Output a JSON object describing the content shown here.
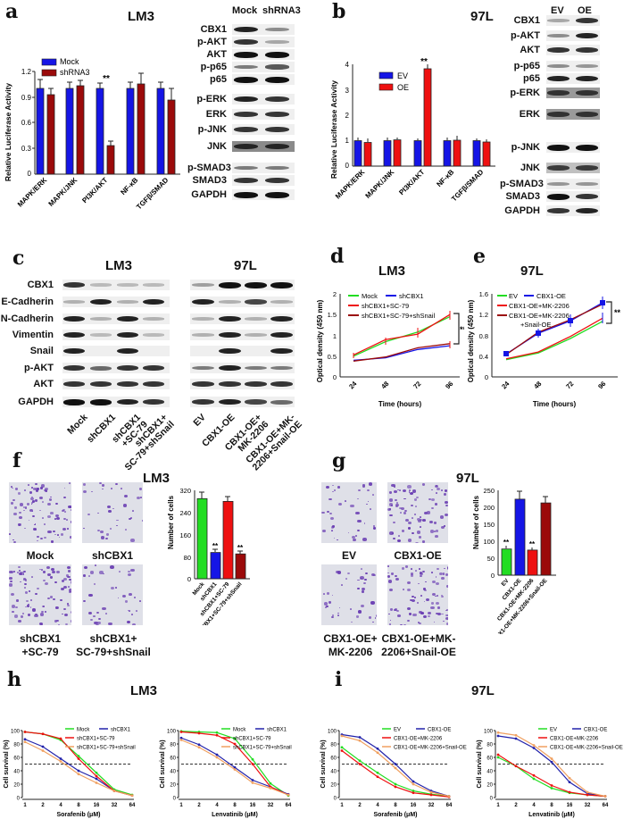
{
  "panels": {
    "a": {
      "label": "a",
      "title": "LM3"
    },
    "b": {
      "label": "b",
      "title": "97L"
    },
    "c": {
      "label": "c",
      "title_left": "LM3",
      "title_right": "97L"
    },
    "d": {
      "label": "d",
      "title": "LM3"
    },
    "e": {
      "label": "e",
      "title": "97L"
    },
    "f": {
      "label": "f",
      "title": "LM3"
    },
    "g": {
      "label": "g",
      "title": "97L"
    },
    "h": {
      "label": "h",
      "title": "LM3"
    },
    "i": {
      "label": "i",
      "title": "97L"
    }
  },
  "western_a": {
    "columns": [
      "Mock",
      "shRNA3"
    ],
    "rows": [
      "CBX1",
      "p-AKT",
      "AKT",
      "p-p65",
      "p65",
      "p-ERK",
      "ERK",
      "p-JNK",
      "JNK",
      "p-SMAD3",
      "SMAD3",
      "GAPDH"
    ]
  },
  "western_b": {
    "columns": [
      "EV",
      "OE"
    ],
    "rows": [
      "CBX1",
      "p-AKT",
      "AKT",
      "p-p65",
      "p65",
      "p-ERK",
      "ERK",
      "p-JNK",
      "JNK",
      "p-SMAD3",
      "SMAD3",
      "GAPDH"
    ]
  },
  "western_c": {
    "rows": [
      "CBX1",
      "E-Cadherin",
      "N-Cadherin",
      "Vimentin",
      "Snail",
      "p-AKT",
      "AKT",
      "GAPDH"
    ],
    "lanes_left": [
      "Mock",
      "shCBX1",
      "shCBX1\n+SC-79",
      "shCBX1+\nSC-79+shSnail"
    ],
    "lanes_right": [
      "EV",
      "CBX1-OE",
      "CBX1-OE+\nMK-2206",
      "CBX1-OE+MK-\n2206+Snail-OE"
    ]
  },
  "micrographs_f": {
    "captions": [
      "Mock",
      "shCBX1",
      "shCBX1\n+SC-79",
      "shCBX1+\nSC-79+shSnail"
    ]
  },
  "micrographs_g": {
    "captions": [
      "EV",
      "CBX1-OE",
      "CBX1-OE+\nMK-2206",
      "CBX1-OE+MK-\n2206+Snail-OE"
    ]
  },
  "colors": {
    "blue": "#1515e6",
    "darkred": "#9b0a0a",
    "red": "#ee1010",
    "green": "#22dd22",
    "orange": "#f0a060",
    "navy": "#2222aa"
  },
  "chart_data": [
    {
      "id": "a",
      "type": "bar",
      "title": "LM3",
      "ylabel": "Relative Luciferase Activity",
      "ylim": [
        0,
        1.2
      ],
      "yticks": [
        0.0,
        0.3,
        0.6,
        0.9,
        1.2
      ],
      "categories": [
        "MAPK/ERK",
        "MAPK/JNK",
        "PI3K/AKT",
        "NF-κB",
        "TGFβ/SMAD"
      ],
      "series": [
        {
          "name": "Mock",
          "color": "#1515e6",
          "values": [
            1.0,
            1.0,
            1.0,
            1.0,
            1.0
          ],
          "errors": [
            0.1,
            0.08,
            0.06,
            0.07,
            0.07
          ]
        },
        {
          "name": "shRNA3",
          "color": "#9b0a0a",
          "values": [
            0.93,
            1.03,
            0.33,
            1.05,
            0.87
          ],
          "errors": [
            0.07,
            0.06,
            0.05,
            0.13,
            0.14
          ]
        }
      ],
      "annotations": [
        {
          "category": "PI3K/AKT",
          "text": "**"
        }
      ]
    },
    {
      "id": "b",
      "type": "bar",
      "title": "97L",
      "ylabel": "Relative Luciferase Activity",
      "ylim": [
        0,
        4
      ],
      "yticks": [
        0,
        1,
        2,
        3,
        4
      ],
      "categories": [
        "MAPK/ERK",
        "MAPK/JNK",
        "PI3K/AKT",
        "NF-κB",
        "TGFβ/SMAD"
      ],
      "series": [
        {
          "name": "EV",
          "color": "#1515e6",
          "values": [
            1.0,
            1.0,
            1.0,
            1.0,
            1.0
          ],
          "errors": [
            0.12,
            0.1,
            0.08,
            0.12,
            0.09
          ]
        },
        {
          "name": "OE",
          "color": "#ee1010",
          "values": [
            0.93,
            1.03,
            3.82,
            1.02,
            0.95
          ],
          "errors": [
            0.14,
            0.08,
            0.15,
            0.15,
            0.08
          ]
        }
      ],
      "annotations": [
        {
          "category": "PI3K/AKT",
          "text": "**"
        }
      ]
    },
    {
      "id": "d",
      "type": "line",
      "title": "LM3",
      "xlabel": "Time (hours)",
      "ylabel": "Optical density (450 nm)",
      "x": [
        24,
        48,
        72,
        96
      ],
      "ylim": [
        0,
        2.0
      ],
      "yticks": [
        0.0,
        0.5,
        1.0,
        1.5,
        2.0
      ],
      "series": [
        {
          "name": "Mock",
          "color": "#22dd22",
          "values": [
            0.5,
            0.85,
            1.08,
            1.45
          ]
        },
        {
          "name": "shCBX1",
          "color": "#1515e6",
          "values": [
            0.4,
            0.46,
            0.66,
            0.75
          ]
        },
        {
          "name": "shCBX1+SC-79",
          "color": "#ee1010",
          "values": [
            0.53,
            0.9,
            1.03,
            1.5
          ]
        },
        {
          "name": "shCBX1+SC-79+shSnail",
          "color": "#9b0a0a",
          "values": [
            0.38,
            0.48,
            0.7,
            0.8
          ]
        }
      ],
      "annotations": [
        {
          "text": "**",
          "position": "right bracket at 96h"
        }
      ]
    },
    {
      "id": "e",
      "type": "line",
      "title": "97L",
      "xlabel": "Time (hours)",
      "ylabel": "Optical density (450 nm)",
      "x": [
        24,
        48,
        72,
        96
      ],
      "ylim": [
        0,
        1.6
      ],
      "yticks": [
        0.0,
        0.4,
        0.8,
        1.2,
        1.6
      ],
      "series": [
        {
          "name": "EV",
          "color": "#22dd22",
          "values": [
            0.33,
            0.46,
            0.74,
            1.07
          ]
        },
        {
          "name": "CBX1-OE",
          "color": "#1515e6",
          "values": [
            0.44,
            0.84,
            1.08,
            1.43
          ]
        },
        {
          "name": "CBX1-OE+MK-2206",
          "color": "#ee1010",
          "values": [
            0.35,
            0.48,
            0.78,
            1.13
          ]
        },
        {
          "name": "CBX1-OE+MK-2206 +Snail-OE",
          "color": "#9b0a0a",
          "values": [
            0.43,
            0.86,
            1.1,
            1.4
          ]
        }
      ],
      "annotations": [
        {
          "text": "**",
          "position": "right bracket at 96h"
        }
      ]
    },
    {
      "id": "f",
      "type": "bar",
      "title": "LM3",
      "ylabel": "Number of cells",
      "ylim": [
        0,
        320
      ],
      "yticks": [
        0,
        80,
        160,
        240,
        320
      ],
      "categories": [
        "Mock",
        "shCBX1",
        "shCBX1+SC-79",
        "shCBX1+SC-79+shSnail"
      ],
      "values": [
        290,
        95,
        280,
        90
      ],
      "errors": [
        25,
        10,
        18,
        10
      ],
      "colors": [
        "#22dd22",
        "#1515e6",
        "#ee1010",
        "#9b0a0a"
      ],
      "annotations": [
        {
          "category": "shCBX1",
          "text": "**"
        },
        {
          "category": "shCBX1+SC-79+shSnail",
          "text": "**"
        }
      ]
    },
    {
      "id": "g",
      "type": "bar",
      "title": "97L",
      "ylabel": "Number of cells",
      "ylim": [
        0,
        250
      ],
      "yticks": [
        0,
        50,
        100,
        150,
        200,
        250
      ],
      "categories": [
        "EV",
        "CBX1-OE",
        "CBX1-OE+MK-2206",
        "CBX1-OE+MK-2206+Snail-OE"
      ],
      "values": [
        77,
        224,
        74,
        213
      ],
      "errors": [
        8,
        22,
        7,
        18
      ],
      "colors": [
        "#22dd22",
        "#1515e6",
        "#ee1010",
        "#9b0a0a"
      ],
      "annotations": [
        {
          "category": "EV",
          "text": "**"
        },
        {
          "category": "CBX1-OE+MK-2206",
          "text": "**"
        }
      ]
    },
    {
      "id": "h1",
      "type": "line",
      "title": "LM3",
      "xlabel": "Sorafenib (μM)",
      "ylabel": "Cell survival (%)",
      "x": [
        1,
        2,
        4,
        8,
        16,
        32,
        64
      ],
      "xscale": "log2",
      "ylim": [
        0,
        100
      ],
      "yticks": [
        0,
        20,
        40,
        60,
        80,
        100
      ],
      "reference_line": 50,
      "series": [
        {
          "name": "Mock",
          "color": "#22dd22",
          "values": [
            98,
            95,
            86,
            62,
            37,
            12,
            4
          ]
        },
        {
          "name": "shCBX1",
          "color": "#2222aa",
          "values": [
            87,
            76,
            58,
            40,
            28,
            10,
            3
          ]
        },
        {
          "name": "shCBX1+SC-79",
          "color": "#ee1010",
          "values": [
            98,
            95,
            88,
            58,
            32,
            10,
            3
          ]
        },
        {
          "name": "shCBX1+SC-79+shSnail",
          "color": "#f0a060",
          "values": [
            83,
            70,
            54,
            35,
            22,
            10,
            3
          ]
        }
      ]
    },
    {
      "id": "h2",
      "type": "line",
      "title": "LM3",
      "xlabel": "Lenvatinib (μM)",
      "ylabel": "Cell survival (%)",
      "x": [
        1,
        2,
        4,
        8,
        16,
        32,
        64
      ],
      "xscale": "log2",
      "ylim": [
        0,
        100
      ],
      "yticks": [
        0,
        20,
        40,
        60,
        80,
        100
      ],
      "reference_line": 50,
      "series": [
        {
          "name": "Mock",
          "color": "#22dd22",
          "values": [
            99,
            98,
            97,
            88,
            57,
            21,
            3
          ]
        },
        {
          "name": "shCBX1",
          "color": "#2222aa",
          "values": [
            89,
            79,
            64,
            45,
            26,
            16,
            5
          ]
        },
        {
          "name": "shCBX1+SC-79",
          "color": "#ee1010",
          "values": [
            98,
            96,
            93,
            80,
            50,
            16,
            4
          ]
        },
        {
          "name": "shCBX1+SC-79+shSnail",
          "color": "#f0a060",
          "values": [
            86,
            75,
            60,
            42,
            22,
            14,
            4
          ]
        }
      ]
    },
    {
      "id": "i1",
      "type": "line",
      "title": "97L",
      "xlabel": "Sorafenib (μM)",
      "ylabel": "Cell survival (%)",
      "x": [
        1,
        2,
        4,
        8,
        16,
        32,
        64
      ],
      "xscale": "log2",
      "ylim": [
        0,
        100
      ],
      "yticks": [
        0,
        20,
        40,
        60,
        80,
        100
      ],
      "reference_line": 50,
      "series": [
        {
          "name": "EV",
          "color": "#22dd22",
          "values": [
            75,
            55,
            37,
            20,
            10,
            5,
            2
          ]
        },
        {
          "name": "CBX1-OE",
          "color": "#2222aa",
          "values": [
            94,
            90,
            73,
            50,
            24,
            10,
            2
          ]
        },
        {
          "name": "CBX1-OE+MK-2206",
          "color": "#ee1010",
          "values": [
            70,
            50,
            31,
            16,
            7,
            4,
            1
          ]
        },
        {
          "name": "CBX1-OE+MK-2206+Snail-OE",
          "color": "#f0a060",
          "values": [
            92,
            85,
            67,
            44,
            20,
            8,
            2
          ]
        }
      ]
    },
    {
      "id": "i2",
      "type": "line",
      "title": "97L",
      "xlabel": "Lenvatinib (μM)",
      "ylabel": "Cell survival (%)",
      "x": [
        1,
        2,
        4,
        8,
        16,
        32,
        64
      ],
      "xscale": "log2",
      "ylim": [
        0,
        100
      ],
      "yticks": [
        0,
        20,
        40,
        60,
        80,
        100
      ],
      "reference_line": 50,
      "series": [
        {
          "name": "EV",
          "color": "#22dd22",
          "values": [
            60,
            47,
            28,
            14,
            7,
            4,
            2
          ]
        },
        {
          "name": "CBX1-OE",
          "color": "#2222aa",
          "values": [
            92,
            88,
            74,
            53,
            23,
            6,
            2
          ]
        },
        {
          "name": "CBX1-OE+MK-2206",
          "color": "#ee1010",
          "values": [
            64,
            47,
            33,
            18,
            8,
            4,
            2
          ]
        },
        {
          "name": "CBX1-OE+MK-2206+Snail-OE",
          "color": "#f0a060",
          "values": [
            97,
            93,
            78,
            58,
            29,
            8,
            2
          ]
        }
      ]
    }
  ]
}
